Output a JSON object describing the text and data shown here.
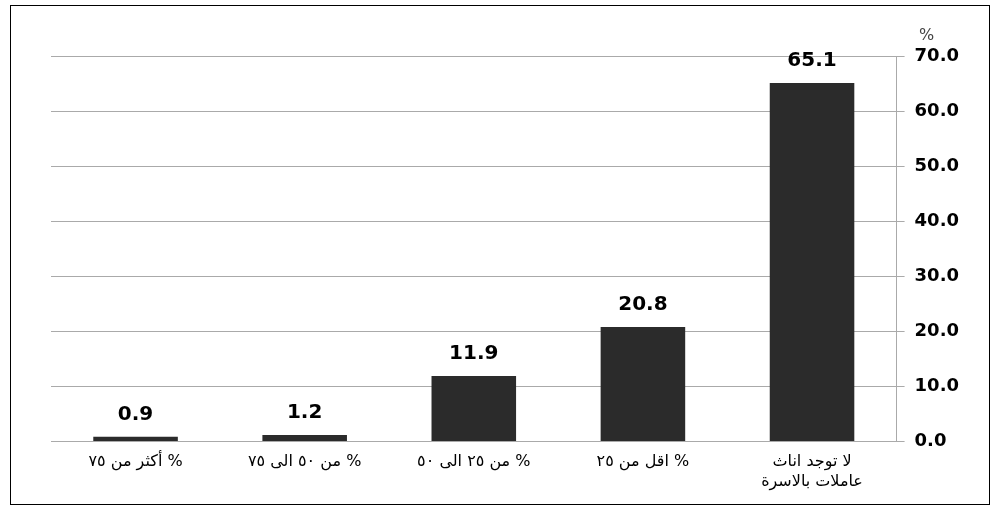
{
  "chart_data": {
    "type": "bar",
    "categories": [
      "أكثر من ٧٥ %",
      "من ٥٠ الى ٧٥ %",
      "من ٢٥ الى ٥٠ %",
      "اقل من ٢٥ %",
      "لا توجد اناث عاملات بالاسرة"
    ],
    "values": [
      0.9,
      1.2,
      11.9,
      20.8,
      65.1
    ],
    "color": "#2b2b2b",
    "ylabel": "%",
    "ylim": [
      0,
      70
    ],
    "yticks": [
      {
        "value": 0,
        "label": "0.0"
      },
      {
        "value": 10,
        "label": "10.0"
      },
      {
        "value": 20,
        "label": "20.0"
      },
      {
        "value": 30,
        "label": "30.0"
      },
      {
        "value": 40,
        "label": "40.0"
      },
      {
        "value": 50,
        "label": "50.0"
      },
      {
        "value": 60,
        "label": "60.0"
      },
      {
        "value": 70,
        "label": "70.0"
      }
    ],
    "grid": "y",
    "data_labels": true
  }
}
